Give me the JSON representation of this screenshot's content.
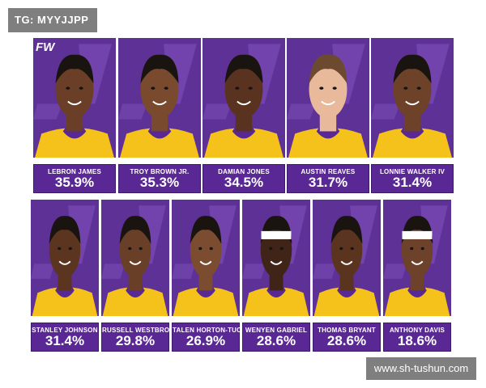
{
  "tag": "TG: MYYJJPP",
  "brand": "FW",
  "watermark": "www.sh-tushun.com",
  "colors": {
    "purple": "#5a2894",
    "gold": "#f5c21b",
    "skin": "#7a4a2e"
  },
  "players": [
    {
      "name": "LEBRON JAMES",
      "pct": "35.9%"
    },
    {
      "name": "TROY BROWN JR.",
      "pct": "35.3%"
    },
    {
      "name": "DAMIAN JONES",
      "pct": "34.5%"
    },
    {
      "name": "AUSTIN REAVES",
      "pct": "31.7%"
    },
    {
      "name": "LONNIE WALKER IV",
      "pct": "31.4%"
    },
    {
      "name": "STANLEY JOHNSON",
      "pct": "31.4%"
    },
    {
      "name": "RUSSELL WESTBROOK",
      "pct": "29.8%"
    },
    {
      "name": "TALEN HORTON-TUCKER",
      "pct": "26.9%"
    },
    {
      "name": "WENYEN GABRIEL",
      "pct": "28.6%"
    },
    {
      "name": "THOMAS BRYANT",
      "pct": "28.6%"
    },
    {
      "name": "ANTHONY DAVIS",
      "pct": "18.6%"
    }
  ]
}
